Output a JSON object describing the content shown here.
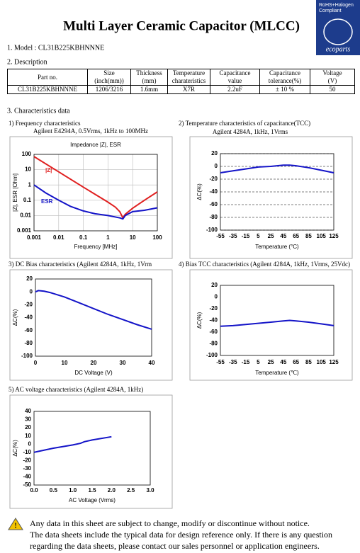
{
  "header": {
    "title": "Multi Layer Ceramic Capacitor (MLCC)",
    "logo": {
      "badge": [
        "RoHS+Halogen",
        "Compliant"
      ],
      "brand": "ecoparts"
    }
  },
  "model": "1. Model : CL31B225KBHNNNE",
  "description": {
    "heading": "2. Description",
    "table": {
      "header": [
        "Part no.",
        "Size\n(inch(mm))",
        "Thickness\n(mm)",
        "Temperature\ncharateristics",
        "Capacitance\nvalue",
        "Capacitance\ntolerance(%)",
        "Voltage\n(V)"
      ],
      "rows": [
        [
          "CL31B225KBHNNNE",
          "1206/3216",
          "1.6mm",
          "X7R",
          "2.2uF",
          "± 10 %",
          "50"
        ]
      ]
    }
  },
  "characteristics_heading": "3. Characteristics data",
  "chart_data": [
    {
      "type": "line",
      "title": "1) Frequency characteristics",
      "subtitle": "Agilent E4294A, 0.5Vrms, 1kHz to 100MHz",
      "plot_title": "Impedance |Z|, ESR",
      "x_label": "Frequency [MHz]",
      "y_label": "|Z|, ESR [Ohm]",
      "log_scale": true,
      "grid": true,
      "grid_axis": "both",
      "xlim": [
        0.001,
        100
      ],
      "ylim": [
        0.001,
        100
      ],
      "xticks": [
        0.001,
        0.01,
        0.1,
        1,
        10,
        100
      ],
      "yticks": [
        0.001,
        0.01,
        0.1,
        1,
        10,
        100
      ],
      "series": [
        {
          "name": "|Z|",
          "color": "#e02020",
          "x": [
            0.001,
            0.01,
            0.1,
            1,
            2,
            3,
            4,
            5,
            10,
            30,
            100
          ],
          "values": [
            72,
            7.2,
            0.72,
            0.075,
            0.035,
            0.018,
            0.007,
            0.012,
            0.03,
            0.1,
            0.35
          ]
        },
        {
          "name": "ESR",
          "color": "#1414c8",
          "x": [
            0.001,
            0.003,
            0.01,
            0.03,
            0.1,
            0.3,
            1,
            3,
            4,
            5,
            10,
            30,
            100
          ],
          "values": [
            1,
            0.3,
            0.1,
            0.04,
            0.02,
            0.013,
            0.01,
            0.007,
            0.006,
            0.01,
            0.018,
            0.022,
            0.032
          ]
        }
      ]
    },
    {
      "type": "line",
      "title": "2) Temperature characteristics of capacitance(TCC)",
      "subtitle": "Agilent 4284A, 1kHz, 1Vrms",
      "x_label": "Temperature (°C)",
      "y_label": "ΔC(%)",
      "grid": true,
      "grid_axis": "y",
      "x": [
        -55,
        -35,
        -15,
        5,
        25,
        45,
        55,
        65,
        85,
        105,
        125
      ],
      "xlim": [
        -55,
        125
      ],
      "ylim": [
        -100,
        20
      ],
      "xticks": [
        -55,
        -35,
        -15,
        5,
        25,
        45,
        65,
        85,
        105,
        125
      ],
      "yticks": [
        -100,
        -80,
        -60,
        -40,
        -20,
        0,
        20
      ],
      "series": [
        {
          "color": "#1414c8",
          "values": [
            -10,
            -7,
            -4,
            -1,
            0,
            2,
            2,
            1,
            -2,
            -6,
            -10
          ]
        }
      ]
    },
    {
      "type": "line",
      "title": "3) DC Bias characteristics (Agilent 4284A, 1kHz, 1Vrm",
      "x_label": "DC Voltage (V)",
      "y_label": "ΔC(%)",
      "grid": false,
      "x": [
        0,
        1,
        3,
        5,
        10,
        15,
        20,
        25,
        30,
        35,
        40
      ],
      "xlim": [
        0,
        40
      ],
      "ylim": [
        -100,
        20
      ],
      "xticks": [
        0,
        10,
        20,
        30,
        40
      ],
      "yticks": [
        -100,
        -80,
        -60,
        -40,
        -20,
        0,
        20
      ],
      "series": [
        {
          "color": "#1414c8",
          "values": [
            0,
            2,
            1,
            -1,
            -8,
            -17,
            -26,
            -35,
            -43,
            -51,
            -58
          ]
        }
      ]
    },
    {
      "type": "line",
      "title": "4) Bias TCC characteristics (Agilent 4284A, 1kHz, 1Vrms, 25Vdc)",
      "x_label": "Temperature (℃)",
      "y_label": "ΔC(%)",
      "grid": false,
      "x": [
        -55,
        -35,
        -15,
        5,
        25,
        45,
        55,
        65,
        85,
        105,
        125
      ],
      "xlim": [
        -55,
        125
      ],
      "ylim": [
        -100,
        20
      ],
      "xticks": [
        -55,
        -35,
        -15,
        5,
        25,
        45,
        65,
        85,
        105,
        125
      ],
      "yticks": [
        -100,
        -80,
        -60,
        -40,
        -20,
        0,
        20
      ],
      "series": [
        {
          "color": "#1414c8",
          "values": [
            -50,
            -49,
            -47,
            -45,
            -43,
            -41,
            -40,
            -41,
            -43,
            -46,
            -49
          ]
        }
      ]
    },
    {
      "type": "line",
      "title": "5) AC voltage characteristics (Agilent 4284A, 1kHz)",
      "x_label": "AC Voltage (Vrms)",
      "y_label": "ΔC(%)",
      "grid": false,
      "x": [
        0,
        0.1,
        0.5,
        1,
        1.2,
        1.3,
        1.5,
        2
      ],
      "xlim": [
        0,
        3
      ],
      "ylim": [
        -50,
        40
      ],
      "xticks": [
        {
          "value": 0,
          "label": "0.0"
        },
        0.5,
        {
          "value": 1,
          "label": "1.0"
        },
        1.5,
        {
          "value": 2,
          "label": "2.0"
        },
        2.5,
        {
          "value": 3,
          "label": "3.0"
        }
      ],
      "yticks": [
        -50,
        -40,
        -30,
        -20,
        -10,
        0,
        10,
        20,
        30,
        40
      ],
      "series": [
        {
          "color": "#1414c8",
          "values": [
            -10,
            -9,
            -5,
            -1,
            1,
            3,
            5,
            9
          ]
        }
      ]
    }
  ],
  "footer": [
    "Any data in this sheet are subject to change, modify or discontinue without notice.",
    "The data sheets include the typical data for design reference only. If there is any question",
    "regarding the data sheets, please contact our sales personnel or application engineers."
  ]
}
